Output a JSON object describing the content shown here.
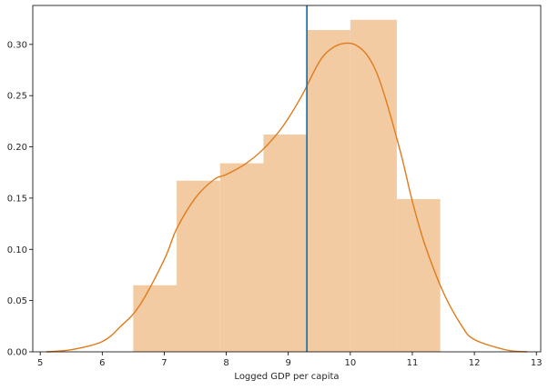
{
  "chart_data": {
    "type": "bar",
    "title": "",
    "xlabel": "Logged GDP per capita",
    "ylabel": "",
    "xlim": [
      4.88,
      13.07
    ],
    "ylim": [
      0,
      0.338
    ],
    "x_ticks": [
      5,
      6,
      7,
      8,
      9,
      10,
      11,
      12,
      13
    ],
    "y_ticks": [
      0.0,
      0.05,
      0.1,
      0.15,
      0.2,
      0.25,
      0.3
    ],
    "grid": false,
    "legend": "none",
    "histogram": {
      "bins": [
        {
          "start": 6.5,
          "end": 7.2,
          "density": 0.065
        },
        {
          "start": 7.2,
          "end": 7.9,
          "density": 0.167
        },
        {
          "start": 7.9,
          "end": 8.6,
          "density": 0.184
        },
        {
          "start": 8.6,
          "end": 9.3,
          "density": 0.212
        },
        {
          "start": 9.3,
          "end": 10.0,
          "density": 0.314
        },
        {
          "start": 10.0,
          "end": 10.75,
          "density": 0.324
        },
        {
          "start": 10.75,
          "end": 11.45,
          "density": 0.149
        }
      ],
      "color": "#f2cba2"
    },
    "kde": {
      "color": "#e07b1c",
      "x": [
        5.1,
        5.5,
        6.0,
        6.3,
        6.6,
        7.0,
        7.2,
        7.5,
        7.8,
        8.0,
        8.3,
        8.6,
        8.9,
        9.2,
        9.5,
        9.7,
        9.9,
        10.1,
        10.3,
        10.5,
        10.8,
        11.0,
        11.2,
        11.5,
        11.8,
        12.0,
        12.5,
        12.85
      ],
      "y": [
        0.0,
        0.002,
        0.01,
        0.025,
        0.045,
        0.09,
        0.12,
        0.15,
        0.168,
        0.173,
        0.183,
        0.198,
        0.219,
        0.248,
        0.283,
        0.296,
        0.301,
        0.299,
        0.287,
        0.26,
        0.197,
        0.147,
        0.105,
        0.058,
        0.025,
        0.012,
        0.002,
        0.0
      ]
    },
    "vline": {
      "x": 9.3,
      "color": "#1f77b4"
    }
  }
}
